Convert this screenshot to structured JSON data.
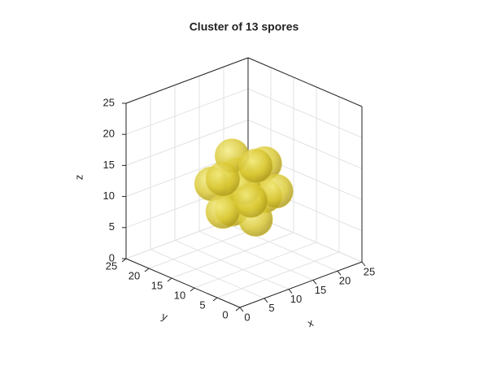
{
  "chart_data": {
    "type": "scatter3d",
    "title": "Cluster of 13 spores",
    "x_label": "x",
    "y_label": "y",
    "z_label": "z",
    "x": [
      12,
      12,
      12,
      12,
      12,
      9.4,
      14.6,
      9.4,
      14.6,
      7.7,
      16.3,
      7.7,
      16.3
    ],
    "y": [
      12,
      9.4,
      14.6,
      9.4,
      14.6,
      7.7,
      7.7,
      16.3,
      16.3,
      12,
      12,
      12,
      12
    ],
    "z": [
      12,
      7.7,
      7.7,
      16.3,
      16.3,
      12,
      12,
      12,
      12,
      9.4,
      9.4,
      14.6,
      14.6
    ],
    "marker_radius": 2.6,
    "color": "#e0d040",
    "xlim": [
      0,
      25
    ],
    "ylim": [
      0,
      25
    ],
    "zlim": [
      0,
      25
    ],
    "xticks": [
      0,
      5,
      10,
      15,
      20,
      25
    ],
    "yticks": [
      0,
      5,
      10,
      15,
      20,
      25
    ],
    "zticks": [
      0,
      5,
      10,
      15,
      20,
      25
    ],
    "grid": true
  }
}
